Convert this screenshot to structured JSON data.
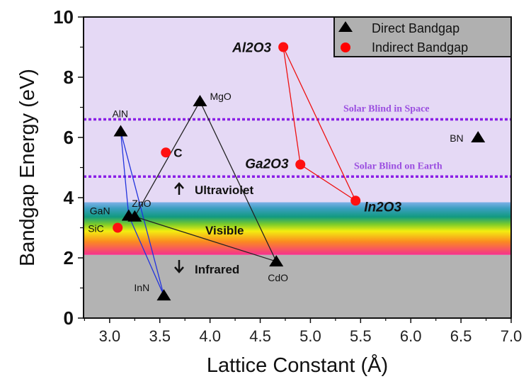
{
  "chart_data": {
    "type": "scatter",
    "xlabel": "Lattice Constant (Å)",
    "ylabel": "Bandgap Energy (eV)",
    "xlim": [
      2.74,
      7.0
    ],
    "ylim": [
      0,
      10
    ],
    "xticks": [
      "3.0",
      "3.5",
      "4.0",
      "4.5",
      "5.0",
      "5.5",
      "6.0",
      "6.5",
      "7.0"
    ],
    "yticks": [
      "0",
      "2",
      "4",
      "6",
      "8",
      "10"
    ],
    "grid": false,
    "legend": {
      "placement": "top-right",
      "entries": [
        {
          "label": "Direct Bandgap",
          "marker": "triangle",
          "color": "#000000"
        },
        {
          "label": "Indirect Bandgap",
          "marker": "circle",
          "color": "#ff0000"
        }
      ]
    },
    "regions": [
      {
        "label": "Infrared",
        "from": 0,
        "to": 2.1,
        "color": "#b3b3b3"
      },
      {
        "label": "Visible",
        "from": 2.1,
        "to": 3.85,
        "color": "spectrum"
      },
      {
        "label": "Ultraviolet",
        "from": 3.85,
        "to": 10,
        "color": "#e5d9f5"
      }
    ],
    "reference_lines": [
      {
        "label": "Solar Blind in Space",
        "y": 6.6,
        "color": "#8a1ee6"
      },
      {
        "label": "Solar Blind on Earth",
        "y": 4.7,
        "color": "#8a1ee6"
      }
    ],
    "points": [
      {
        "name": "AlN",
        "x": 3.11,
        "y": 6.2,
        "type": "direct"
      },
      {
        "name": "GaN",
        "x": 3.19,
        "y": 3.4,
        "type": "direct"
      },
      {
        "name": "ZnO",
        "x": 3.25,
        "y": 3.37,
        "type": "direct"
      },
      {
        "name": "InN",
        "x": 3.54,
        "y": 0.75,
        "type": "direct"
      },
      {
        "name": "MgO",
        "x": 3.9,
        "y": 7.2,
        "type": "direct"
      },
      {
        "name": "CdO",
        "x": 4.66,
        "y": 1.88,
        "type": "direct"
      },
      {
        "name": "BN",
        "x": 6.67,
        "y": 6.0,
        "type": "direct"
      },
      {
        "name": "SiC",
        "x": 3.08,
        "y": 3.0,
        "type": "indirect"
      },
      {
        "name": "C",
        "x": 3.56,
        "y": 5.5,
        "type": "indirect"
      },
      {
        "name": "Al2O3",
        "x": 4.73,
        "y": 9.0,
        "type": "indirect"
      },
      {
        "name": "Ga2O3",
        "x": 4.9,
        "y": 5.1,
        "type": "indirect"
      },
      {
        "name": "In2O3",
        "x": 5.45,
        "y": 3.9,
        "type": "indirect"
      }
    ],
    "connections": [
      {
        "color": "#2233dd",
        "path": [
          "AlN",
          "GaN",
          "InN",
          "AlN"
        ]
      },
      {
        "color": "#222222",
        "path": [
          "ZnO",
          "MgO",
          "CdO",
          "ZnO"
        ]
      },
      {
        "color": "#ee1111",
        "path": [
          "Al2O3",
          "Ga2O3",
          "In2O3",
          "Al2O3"
        ]
      }
    ],
    "annotations": {
      "ultraviolet": "Ultraviolet",
      "visible": "Visible",
      "infrared": "Infrared"
    }
  }
}
